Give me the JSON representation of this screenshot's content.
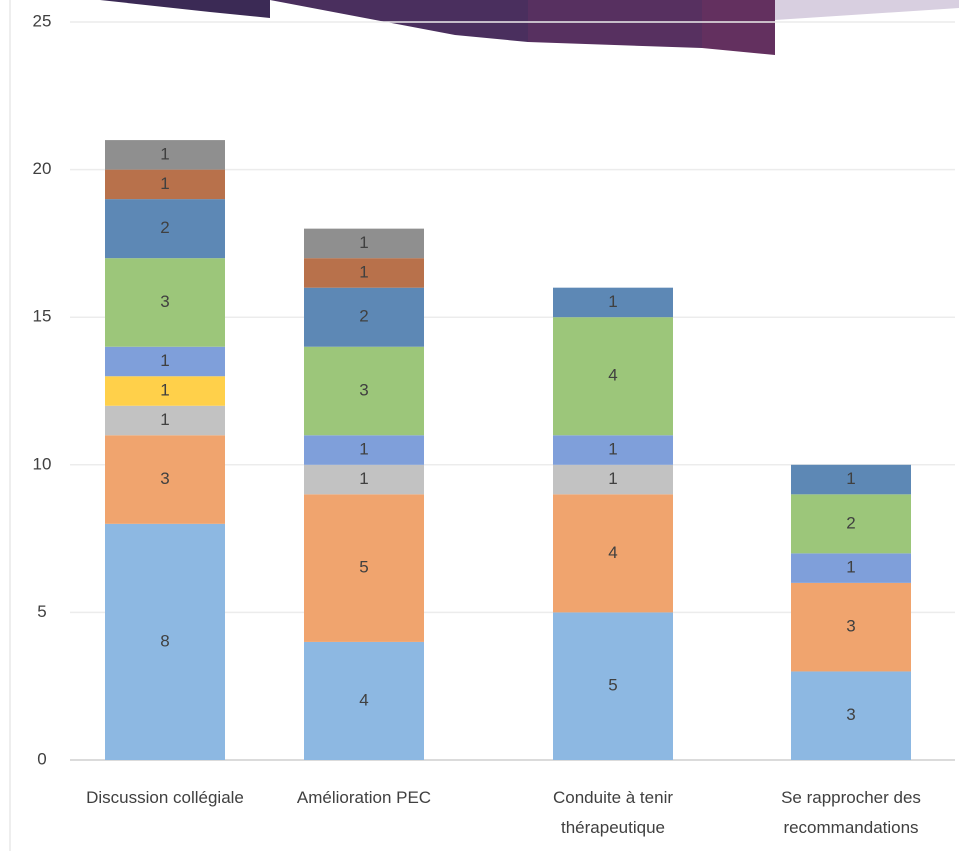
{
  "chart_data": {
    "type": "stacked_bar",
    "categories": [
      "Discussion collégiale",
      "Amélioration PEC",
      "Conduite à tenir thérapeutique",
      "Se rapprocher des recommandations"
    ],
    "series": [
      {
        "color": "#8db8e2",
        "values": [
          8,
          4,
          5,
          3
        ]
      },
      {
        "color": "#f0a46e",
        "values": [
          3,
          5,
          4,
          3
        ]
      },
      {
        "color": "#c2c2c2",
        "values": [
          1,
          1,
          1,
          null
        ]
      },
      {
        "color": "#ffd04a",
        "values": [
          1,
          null,
          null,
          null
        ]
      },
      {
        "color": "#7f9fda",
        "values": [
          1,
          1,
          1,
          1
        ]
      },
      {
        "color": "#9cc67a",
        "values": [
          3,
          3,
          4,
          2
        ]
      },
      {
        "color": "#5d88b5",
        "values": [
          2,
          2,
          1,
          1
        ]
      },
      {
        "color": "#b8714b",
        "values": [
          1,
          1,
          null,
          null
        ]
      },
      {
        "color": "#8f8f8f",
        "values": [
          1,
          1,
          null,
          null
        ]
      }
    ],
    "ylim": [
      0,
      25
    ],
    "yticks": [
      0,
      5,
      10,
      15,
      20,
      25
    ],
    "grid": true
  }
}
